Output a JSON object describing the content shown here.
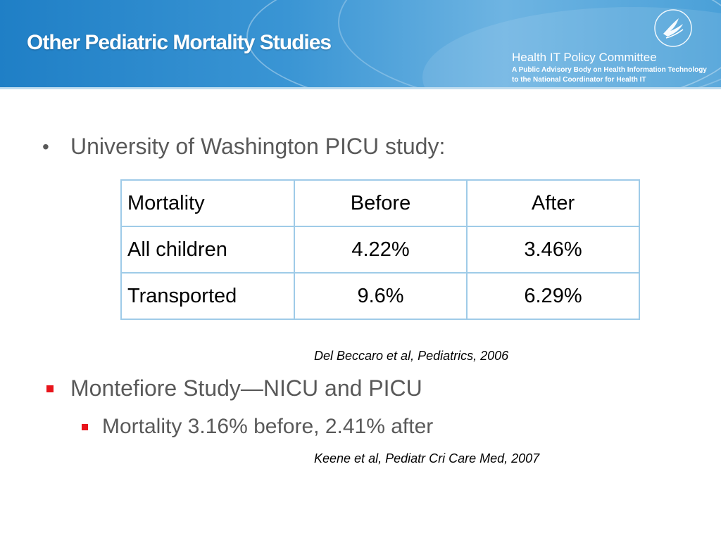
{
  "header": {
    "title": "Other Pediatric Mortality Studies",
    "org_name": "Health IT Policy Committee",
    "org_sub_line1": "A Public Advisory Body on Health Information Technology",
    "org_sub_line2": "to the National Coordinator for Health IT",
    "seal_icon": "hhs-eagle-seal-icon"
  },
  "content": {
    "bullet1": "University of Washington PICU study:",
    "table": {
      "headers": [
        "Mortality",
        "Before",
        "After"
      ],
      "rows": [
        [
          "All children",
          "4.22%",
          "3.46%"
        ],
        [
          "Transported",
          "9.6%",
          "6.29%"
        ]
      ]
    },
    "citation1": "Del Beccaro et al, Pediatrics, 2006",
    "bullet2": "Montefiore Study—NICU and PICU",
    "subbullet": "Mortality 3.16% before, 2.41% after",
    "citation2": "Keene et al, Pediatr Cri Care Med, 2007"
  },
  "colors": {
    "header_blue": "#1f7fc6",
    "table_border": "#9fcbe8",
    "bullet_red": "#e8141b",
    "body_text": "#595959"
  }
}
